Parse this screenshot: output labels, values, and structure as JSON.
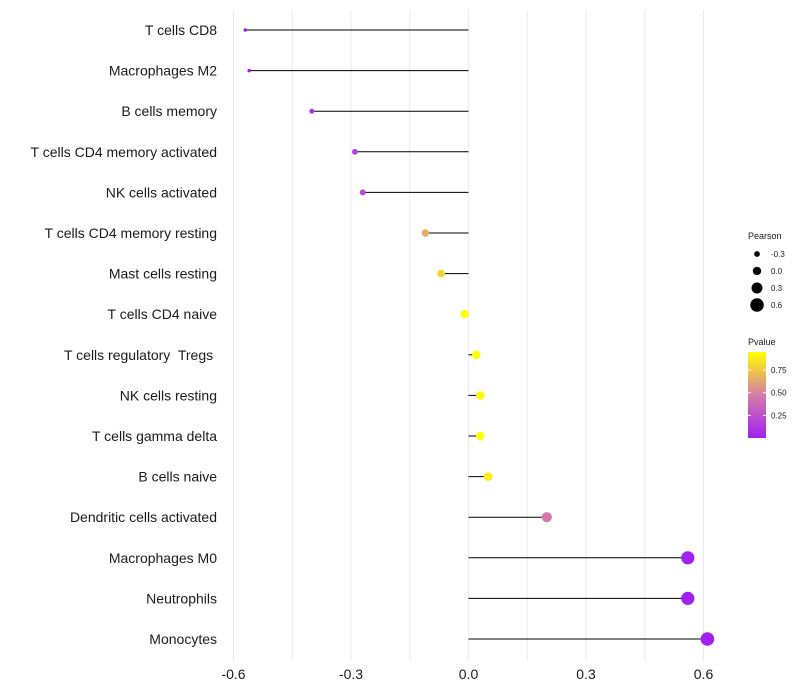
{
  "chart_data": {
    "type": "lollipop",
    "title": "",
    "xlabel": "",
    "ylabel": "",
    "xlim": [
      -0.6,
      0.6
    ],
    "x_ticks": [
      -0.6,
      -0.3,
      0.0,
      0.3,
      0.6
    ],
    "x_tick_labels": [
      "-0.6",
      "-0.3",
      "0.0",
      "0.3",
      "0.6"
    ],
    "grid": "vertical",
    "points": [
      {
        "label": "T cells CD8",
        "pearson": -0.57,
        "pvalue": 0.01
      },
      {
        "label": "Macrophages M2",
        "pearson": -0.56,
        "pvalue": 0.01
      },
      {
        "label": "B cells memory",
        "pearson": -0.4,
        "pvalue": 0.1
      },
      {
        "label": "T cells CD4 memory activated",
        "pearson": -0.29,
        "pvalue": 0.18
      },
      {
        "label": "NK cells activated",
        "pearson": -0.27,
        "pvalue": 0.22
      },
      {
        "label": "T cells CD4 memory resting",
        "pearson": -0.11,
        "pvalue": 0.65
      },
      {
        "label": "Mast cells resting",
        "pearson": -0.07,
        "pvalue": 0.8
      },
      {
        "label": "T cells CD4 naive",
        "pearson": -0.01,
        "pvalue": 0.97
      },
      {
        "label": "T cells regulatory  Tregs ",
        "pearson": 0.02,
        "pvalue": 0.95
      },
      {
        "label": "NK cells resting",
        "pearson": 0.03,
        "pvalue": 0.92
      },
      {
        "label": "T cells gamma delta",
        "pearson": 0.03,
        "pvalue": 0.95
      },
      {
        "label": "B cells naive",
        "pearson": 0.05,
        "pvalue": 0.88
      },
      {
        "label": "Dendritic cells activated",
        "pearson": 0.2,
        "pvalue": 0.45
      },
      {
        "label": "Macrophages M0",
        "pearson": 0.56,
        "pvalue": 0.01
      },
      {
        "label": "Neutrophils",
        "pearson": 0.56,
        "pvalue": 0.01
      },
      {
        "label": "Monocytes",
        "pearson": 0.61,
        "pvalue": 0.005
      }
    ],
    "legend": {
      "placement": "right",
      "size_title": "Pearson",
      "size_entries": [
        {
          "label": "-0.3",
          "value": -0.3
        },
        {
          "label": "0.0",
          "value": 0.0
        },
        {
          "label": "0.3",
          "value": 0.3
        },
        {
          "label": "0.6",
          "value": 0.6
        }
      ],
      "color_title": "Pvalue",
      "color_ticks": [
        {
          "label": "0.75",
          "value": 0.75
        },
        {
          "label": "0.50",
          "value": 0.5
        },
        {
          "label": "0.25",
          "value": 0.25
        }
      ],
      "color_range": [
        0.0,
        0.95
      ],
      "color_low": "#a020f0",
      "color_mid": "#d77ca8",
      "color_high": "#ffff00"
    },
    "line_color": "#000000",
    "grid_color": "#ebebeb"
  }
}
